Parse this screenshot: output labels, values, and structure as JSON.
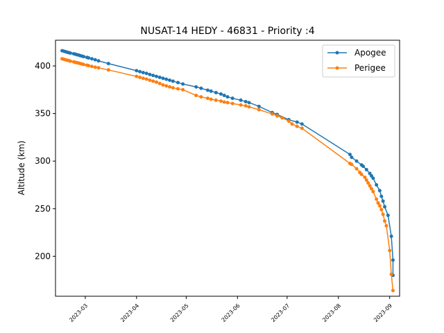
{
  "chart_data": {
    "type": "line",
    "title": "NUSAT-14 HEDY - 46831 - Priority :4",
    "xlabel": "",
    "ylabel": "Altitude (km)",
    "x_tick_labels": [
      "2023-03",
      "2023-04",
      "2023-05",
      "2023-06",
      "2023-07",
      "2023-08",
      "2023-09"
    ],
    "x_ticks": [
      "2023-03-01",
      "2023-04-01",
      "2023-05-01",
      "2023-06-01",
      "2023-07-01",
      "2023-08-01",
      "2023-09-01"
    ],
    "xlim": [
      "2023-02-11",
      "2023-09-07"
    ],
    "y_tick_labels": [
      "200",
      "250",
      "300",
      "350",
      "400"
    ],
    "y_ticks": [
      200,
      250,
      300,
      350,
      400
    ],
    "ylim": [
      158,
      427
    ],
    "grid": false,
    "legend_position": "upper right",
    "series": [
      {
        "name": "Apogee",
        "color": "#1f77b4",
        "points": [
          [
            "2023-02-15",
            416
          ],
          [
            "2023-02-16",
            415.5
          ],
          [
            "2023-02-17",
            415
          ],
          [
            "2023-02-18",
            414.4
          ],
          [
            "2023-02-19",
            414
          ],
          [
            "2023-02-20",
            413.5
          ],
          [
            "2023-02-22",
            412.8
          ],
          [
            "2023-02-23",
            412.3
          ],
          [
            "2023-02-24",
            411.8
          ],
          [
            "2023-02-25",
            411.4
          ],
          [
            "2023-02-26",
            410.8
          ],
          [
            "2023-02-27",
            410.3
          ],
          [
            "2023-02-28",
            409.8
          ],
          [
            "2023-03-02",
            409
          ],
          [
            "2023-03-03",
            408.4
          ],
          [
            "2023-03-05",
            407.5
          ],
          [
            "2023-03-07",
            406.5
          ],
          [
            "2023-03-09",
            405.3
          ],
          [
            "2023-03-15",
            402.5
          ],
          [
            "2023-04-01",
            395
          ],
          [
            "2023-04-03",
            394
          ],
          [
            "2023-04-05",
            393
          ],
          [
            "2023-04-07",
            392.2
          ],
          [
            "2023-04-09",
            391
          ],
          [
            "2023-04-11",
            390
          ],
          [
            "2023-04-13",
            389
          ],
          [
            "2023-04-15",
            388
          ],
          [
            "2023-04-17",
            387
          ],
          [
            "2023-04-19",
            386
          ],
          [
            "2023-04-21",
            385
          ],
          [
            "2023-04-23",
            384
          ],
          [
            "2023-04-26",
            382.5
          ],
          [
            "2023-04-29",
            381
          ],
          [
            "2023-05-07",
            378
          ],
          [
            "2023-05-10",
            376.5
          ],
          [
            "2023-05-14",
            374.5
          ],
          [
            "2023-05-16",
            373.5
          ],
          [
            "2023-05-19",
            372
          ],
          [
            "2023-05-22",
            370.5
          ],
          [
            "2023-05-24",
            369
          ],
          [
            "2023-05-26",
            367.5
          ],
          [
            "2023-05-29",
            366
          ],
          [
            "2023-06-03",
            364
          ],
          [
            "2023-06-06",
            362.5
          ],
          [
            "2023-06-08",
            361.5
          ],
          [
            "2023-06-14",
            357.5
          ],
          [
            "2023-06-22",
            351
          ],
          [
            "2023-06-25",
            349
          ],
          [
            "2023-07-02",
            343.5
          ],
          [
            "2023-07-07",
            341
          ],
          [
            "2023-07-10",
            339
          ],
          [
            "2023-08-08",
            307
          ],
          [
            "2023-08-09",
            304
          ],
          [
            "2023-08-12",
            300
          ],
          [
            "2023-08-15",
            296
          ],
          [
            "2023-08-16",
            294.5
          ],
          [
            "2023-08-18",
            291
          ],
          [
            "2023-08-20",
            287
          ],
          [
            "2023-08-21",
            284.5
          ],
          [
            "2023-08-22",
            282
          ],
          [
            "2023-08-24",
            275
          ],
          [
            "2023-08-26",
            269
          ],
          [
            "2023-08-27",
            263
          ],
          [
            "2023-08-28",
            258
          ],
          [
            "2023-08-29",
            252
          ],
          [
            "2023-08-31",
            243
          ],
          [
            "2023-09-02",
            221
          ],
          [
            "2023-09-03",
            196
          ],
          [
            "2023-09-03",
            180
          ]
        ]
      },
      {
        "name": "Perigee",
        "color": "#ff7f0e",
        "points": [
          [
            "2023-02-15",
            407.5
          ],
          [
            "2023-02-16",
            407
          ],
          [
            "2023-02-17",
            406.5
          ],
          [
            "2023-02-18",
            406
          ],
          [
            "2023-02-19",
            405.6
          ],
          [
            "2023-02-20",
            405
          ],
          [
            "2023-02-22",
            404.3
          ],
          [
            "2023-02-23",
            403.8
          ],
          [
            "2023-02-24",
            403.4
          ],
          [
            "2023-02-25",
            403
          ],
          [
            "2023-02-26",
            402.5
          ],
          [
            "2023-02-27",
            402
          ],
          [
            "2023-02-28",
            401.5
          ],
          [
            "2023-03-02",
            400.8
          ],
          [
            "2023-03-03",
            400.3
          ],
          [
            "2023-03-05",
            399.5
          ],
          [
            "2023-03-07",
            398.7
          ],
          [
            "2023-03-09",
            398
          ],
          [
            "2023-03-15",
            395.8
          ],
          [
            "2023-04-01",
            389
          ],
          [
            "2023-04-03",
            388
          ],
          [
            "2023-04-05",
            387
          ],
          [
            "2023-04-07",
            386.2
          ],
          [
            "2023-04-09",
            385
          ],
          [
            "2023-04-11",
            384
          ],
          [
            "2023-04-13",
            383
          ],
          [
            "2023-04-15",
            381.5
          ],
          [
            "2023-04-17",
            380
          ],
          [
            "2023-04-19",
            379
          ],
          [
            "2023-04-21",
            378
          ],
          [
            "2023-04-23",
            377
          ],
          [
            "2023-04-26",
            376
          ],
          [
            "2023-04-29",
            375
          ],
          [
            "2023-05-07",
            369
          ],
          [
            "2023-05-10",
            367.5
          ],
          [
            "2023-05-14",
            366
          ],
          [
            "2023-05-16",
            365
          ],
          [
            "2023-05-19",
            364
          ],
          [
            "2023-05-22",
            363
          ],
          [
            "2023-05-24",
            362
          ],
          [
            "2023-05-26",
            361.5
          ],
          [
            "2023-05-29",
            360.5
          ],
          [
            "2023-06-03",
            359
          ],
          [
            "2023-06-06",
            358
          ],
          [
            "2023-06-08",
            357
          ],
          [
            "2023-06-14",
            354
          ],
          [
            "2023-06-22",
            349.5
          ],
          [
            "2023-06-25",
            347.5
          ],
          [
            "2023-06-28",
            345.5
          ],
          [
            "2023-07-02",
            342
          ],
          [
            "2023-07-04",
            339
          ],
          [
            "2023-07-07",
            336.5
          ],
          [
            "2023-07-10",
            334.5
          ],
          [
            "2023-08-08",
            297.5
          ],
          [
            "2023-08-09",
            296.5
          ],
          [
            "2023-08-12",
            292
          ],
          [
            "2023-08-14",
            288
          ],
          [
            "2023-08-15",
            286
          ],
          [
            "2023-08-17",
            283
          ],
          [
            "2023-08-18",
            280
          ],
          [
            "2023-08-19",
            277
          ],
          [
            "2023-08-20",
            274
          ],
          [
            "2023-08-21",
            271
          ],
          [
            "2023-08-22",
            268
          ],
          [
            "2023-08-24",
            260
          ],
          [
            "2023-08-25",
            256
          ],
          [
            "2023-08-26",
            253
          ],
          [
            "2023-08-27",
            249
          ],
          [
            "2023-08-28",
            244
          ],
          [
            "2023-08-29",
            237
          ],
          [
            "2023-08-30",
            232
          ],
          [
            "2023-09-01",
            206
          ],
          [
            "2023-09-02",
            181
          ],
          [
            "2023-09-03",
            164
          ]
        ]
      }
    ]
  }
}
